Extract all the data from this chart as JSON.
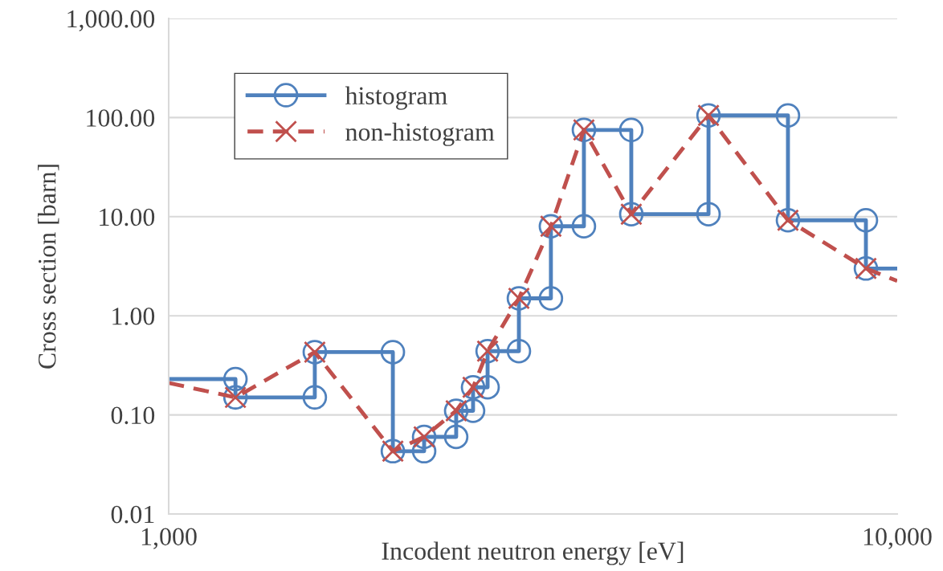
{
  "chart_data": {
    "type": "line",
    "xlabel": "Incodent neutron energy [eV]",
    "ylabel": "Cross section [barn]",
    "log": "xy",
    "xlim": [
      1000,
      10000
    ],
    "xticks": [
      {
        "value": 1000,
        "label": "1,000"
      },
      {
        "value": 10000,
        "label": "10,000"
      }
    ],
    "ylim": [
      0.01,
      1000
    ],
    "yticks": [
      {
        "value": 0.01,
        "label": "0.01"
      },
      {
        "value": 0.1,
        "label": "0.10"
      },
      {
        "value": 1,
        "label": "1.00"
      },
      {
        "value": 10,
        "label": "10.00"
      },
      {
        "value": 100,
        "label": "100.00"
      },
      {
        "value": 1000,
        "label": "1,000.00"
      }
    ],
    "grid": "y",
    "legend": "top left",
    "series": [
      {
        "name": "histogram",
        "color": "#4f81bd",
        "marker": "circle",
        "line_style": "solid",
        "x": [
          1000,
          1235,
          1235,
          1587,
          1587,
          2031,
          2031,
          2242,
          2242,
          2481,
          2481,
          2617,
          2617,
          2740,
          2740,
          3025,
          3025,
          3347,
          3347,
          3715,
          3715,
          4315,
          4315,
          5508,
          5508,
          7080,
          7080,
          9058,
          9058,
          10000
        ],
        "values": [
          0.23,
          0.23,
          0.15,
          0.15,
          0.43,
          0.43,
          0.043,
          0.043,
          0.06,
          0.06,
          0.11,
          0.11,
          0.19,
          0.19,
          0.44,
          0.44,
          1.5,
          1.5,
          8,
          8,
          75,
          75,
          10.6,
          10.6,
          105,
          105,
          9.2,
          9.2,
          3.0,
          3.0
        ]
      },
      {
        "name": "non-histogram",
        "color": "#c0504d",
        "marker": "cross",
        "line_style": "dashed",
        "x": [
          1000,
          1235,
          1587,
          2031,
          2242,
          2481,
          2617,
          2740,
          3025,
          3347,
          3715,
          4315,
          5508,
          7080,
          9058,
          10000
        ],
        "values": [
          0.21,
          0.15,
          0.43,
          0.043,
          0.06,
          0.11,
          0.19,
          0.44,
          1.5,
          8,
          75,
          10.6,
          105,
          9.2,
          3.0,
          2.25
        ]
      }
    ]
  }
}
